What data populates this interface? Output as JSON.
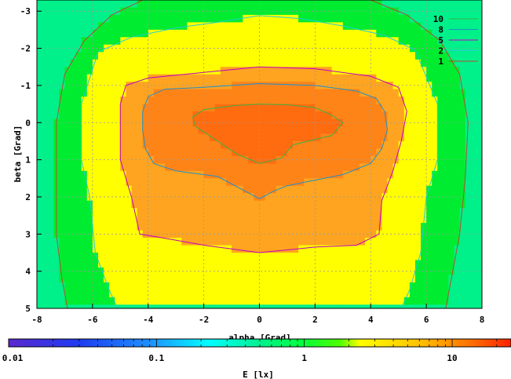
{
  "chart_data": {
    "type": "heatmap",
    "title": "",
    "xlabel": "alpha [Grad]",
    "ylabel": "beta [Grad]",
    "colorbar_label": "E [lx]",
    "xlim": [
      -8,
      8
    ],
    "ylim": [
      -3.3,
      5
    ],
    "y_inverted": true,
    "x_ticks": [
      "-8",
      "-6",
      "-4",
      "-2",
      "0",
      "2",
      "4",
      "6",
      "8"
    ],
    "y_ticks": [
      "-3",
      "-2",
      "-1",
      "0",
      "1",
      "2",
      "3",
      "4",
      "5"
    ],
    "colorbar_ticks": [
      "0.01",
      "0.1",
      "1",
      "10"
    ],
    "colorbar_range": [
      0.01,
      25
    ],
    "colorbar_scale": "log",
    "grid": true,
    "legend_position": "top-right",
    "contour_levels": [
      {
        "label": "10",
        "value": 10,
        "color": "#3cb043"
      },
      {
        "label": "8",
        "value": 8,
        "color": "#1e90c8"
      },
      {
        "label": "5",
        "value": 5,
        "color": "#c000c0"
      },
      {
        "label": "2",
        "value": 2,
        "color": "#20d0d0"
      },
      {
        "label": "1",
        "value": 1,
        "color": "#b05030"
      }
    ],
    "contours": {
      "10": [
        [
          -2.4,
          -0.15
        ],
        [
          -2.0,
          -0.35
        ],
        [
          -1.0,
          -0.45
        ],
        [
          0.0,
          -0.5
        ],
        [
          1.0,
          -0.48
        ],
        [
          2.0,
          -0.4
        ],
        [
          2.6,
          -0.2
        ],
        [
          3.0,
          0.0
        ],
        [
          2.6,
          0.35
        ],
        [
          2.0,
          0.45
        ],
        [
          1.2,
          0.6
        ],
        [
          0.8,
          0.95
        ],
        [
          0.0,
          1.1
        ],
        [
          -0.8,
          0.85
        ],
        [
          -1.5,
          0.5
        ],
        [
          -2.3,
          0.1
        ],
        [
          -2.4,
          -0.15
        ]
      ],
      "8": [
        [
          -4.2,
          -0.3
        ],
        [
          -4.0,
          -0.7
        ],
        [
          -3.4,
          -0.9
        ],
        [
          -2.0,
          -0.95
        ],
        [
          0.0,
          -1.05
        ],
        [
          2.0,
          -1.0
        ],
        [
          3.5,
          -0.85
        ],
        [
          4.2,
          -0.65
        ],
        [
          4.5,
          -0.3
        ],
        [
          4.6,
          0.2
        ],
        [
          4.4,
          0.7
        ],
        [
          4.0,
          1.1
        ],
        [
          3.0,
          1.4
        ],
        [
          1.0,
          1.7
        ],
        [
          0.5,
          1.85
        ],
        [
          0.0,
          2.05
        ],
        [
          -0.5,
          1.85
        ],
        [
          -1.5,
          1.45
        ],
        [
          -3.0,
          1.3
        ],
        [
          -3.8,
          1.1
        ],
        [
          -4.1,
          0.7
        ],
        [
          -4.2,
          0.2
        ],
        [
          -4.2,
          -0.3
        ]
      ],
      "5": [
        [
          -5.0,
          -0.5
        ],
        [
          -4.8,
          -1.0
        ],
        [
          -4.0,
          -1.2
        ],
        [
          -2.0,
          -1.35
        ],
        [
          0.0,
          -1.5
        ],
        [
          2.0,
          -1.45
        ],
        [
          4.0,
          -1.25
        ],
        [
          5.0,
          -0.95
        ],
        [
          5.3,
          -0.3
        ],
        [
          5.1,
          0.5
        ],
        [
          4.8,
          1.3
        ],
        [
          4.4,
          2.1
        ],
        [
          4.3,
          3.0
        ],
        [
          3.5,
          3.3
        ],
        [
          2.0,
          3.35
        ],
        [
          0.0,
          3.5
        ],
        [
          -2.0,
          3.3
        ],
        [
          -3.5,
          3.1
        ],
        [
          -4.3,
          3.0
        ],
        [
          -4.6,
          2.0
        ],
        [
          -5.0,
          1.0
        ],
        [
          -5.0,
          0.3
        ],
        [
          -5.0,
          -0.5
        ]
      ],
      "2": [
        [
          -6.4,
          -0.5
        ],
        [
          -5.8,
          -1.9
        ],
        [
          -4.6,
          -2.3
        ],
        [
          -3.0,
          -2.55
        ],
        [
          -1.5,
          -2.7
        ],
        [
          0.0,
          -2.88
        ],
        [
          1.5,
          -2.8
        ],
        [
          3.0,
          -2.6
        ],
        [
          4.5,
          -2.35
        ],
        [
          5.6,
          -1.95
        ],
        [
          6.4,
          -0.5
        ],
        [
          6.4,
          1.0
        ],
        [
          6.0,
          2.0
        ],
        [
          5.8,
          3.5
        ],
        [
          5.4,
          4.5
        ],
        [
          5.1,
          5.0
        ],
        [
          -5.1,
          5.0
        ],
        [
          -5.4,
          4.5
        ],
        [
          -5.9,
          3.5
        ],
        [
          -6.1,
          2.0
        ],
        [
          -6.4,
          1.0
        ],
        [
          -6.4,
          -0.5
        ]
      ],
      "1": [
        [
          -7.3,
          0.0
        ],
        [
          -7.0,
          -1.3
        ],
        [
          -6.3,
          -2.2
        ],
        [
          -5.3,
          -2.9
        ],
        [
          -4.2,
          -3.3
        ],
        [
          4.0,
          -3.3
        ],
        [
          5.3,
          -2.9
        ],
        [
          6.5,
          -2.2
        ],
        [
          7.2,
          -1.3
        ],
        [
          7.5,
          0.0
        ],
        [
          7.4,
          1.5
        ],
        [
          7.2,
          3.0
        ],
        [
          6.9,
          4.2
        ],
        [
          6.7,
          5.0
        ],
        [
          -6.9,
          5.0
        ],
        [
          -7.1,
          4.2
        ],
        [
          -7.3,
          3.0
        ],
        [
          -7.3,
          1.5
        ],
        [
          -7.3,
          0.0
        ]
      ]
    }
  }
}
